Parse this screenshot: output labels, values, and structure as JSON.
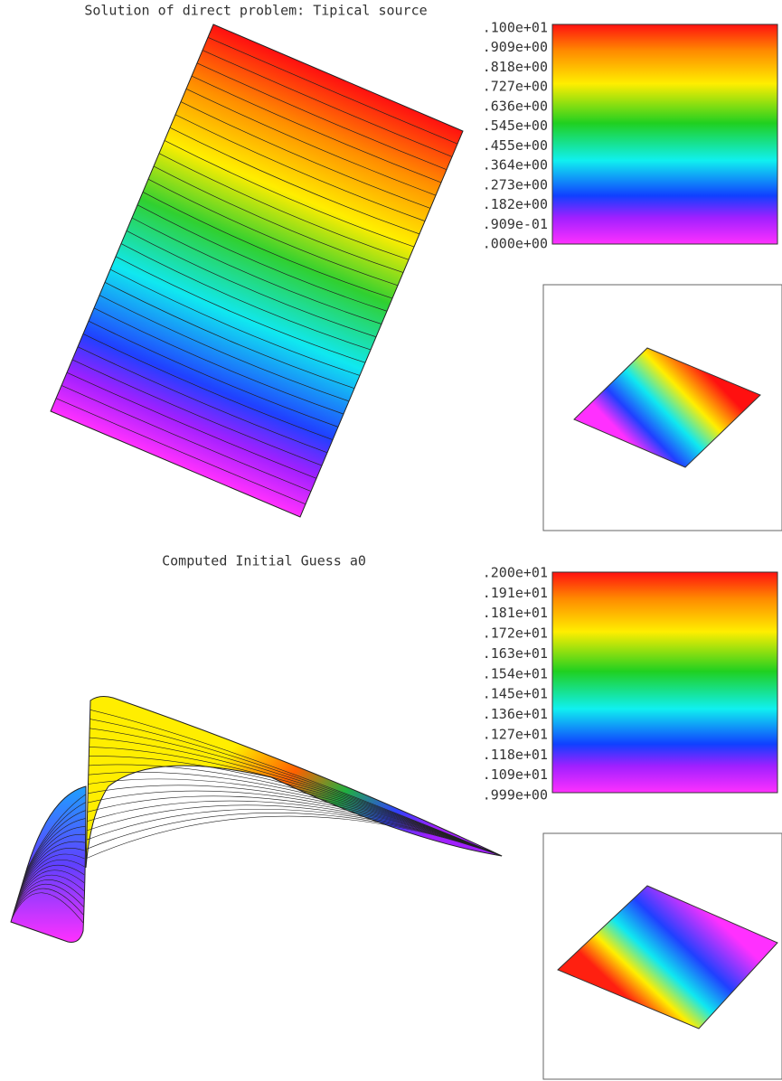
{
  "panels": [
    {
      "title": "Solution of direct problem: Tipical source",
      "colorbar_labels": [
        ".100e+01",
        ".909e+00",
        ".818e+00",
        ".727e+00",
        ".636e+00",
        ".545e+00",
        ".455e+00",
        ".364e+00",
        ".273e+00",
        ".182e+00",
        ".909e-01",
        ".000e+00"
      ]
    },
    {
      "title": "Computed Initial Guess a0",
      "colorbar_labels": [
        ".200e+01",
        ".191e+01",
        ".181e+01",
        ".172e+01",
        ".163e+01",
        ".154e+01",
        ".145e+01",
        ".136e+01",
        ".127e+01",
        ".118e+01",
        ".109e+01",
        ".999e+00"
      ]
    }
  ]
}
